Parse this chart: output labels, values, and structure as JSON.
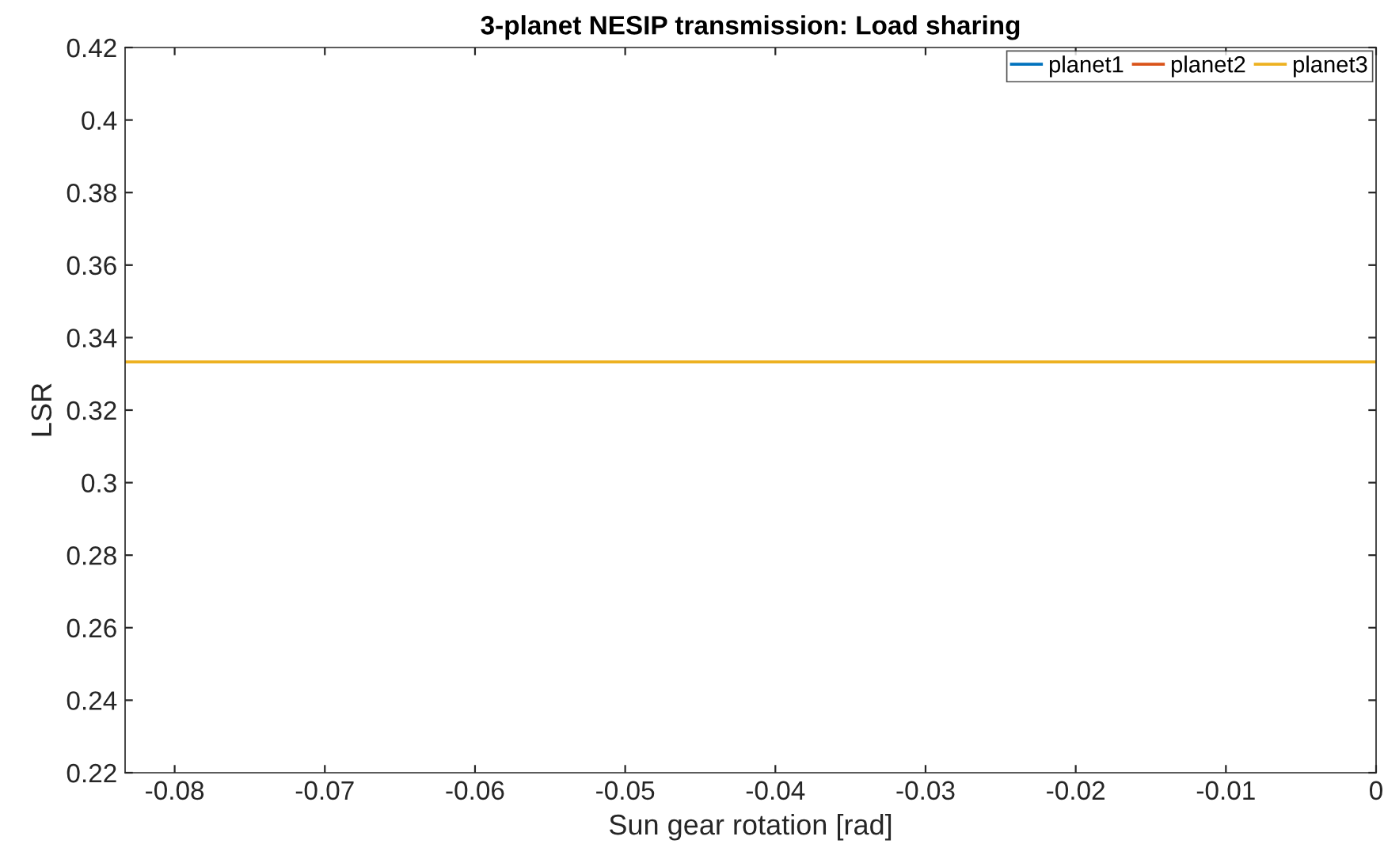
{
  "chart_data": {
    "type": "line",
    "title": "3-planet NESIP transmission: Load sharing",
    "xlabel": "Sun gear rotation [rad]",
    "ylabel": "LSR",
    "x": [
      -0.0833,
      0
    ],
    "series": [
      {
        "name": "planet1",
        "color": "#0072bd",
        "values": [
          null,
          null
        ]
      },
      {
        "name": "planet2",
        "color": "#d95319",
        "values": [
          null,
          null
        ]
      },
      {
        "name": "planet3",
        "color": "#edb120",
        "values": [
          0.3333,
          0.3333
        ]
      }
    ],
    "xlim": [
      -0.0833,
      0
    ],
    "xticks": [
      -0.08,
      -0.07,
      -0.06,
      -0.05,
      -0.04,
      -0.03,
      -0.02,
      -0.01,
      0
    ],
    "ylim": [
      0.22,
      0.42
    ],
    "yticks": [
      0.22,
      0.24,
      0.26,
      0.28,
      0.3,
      0.32,
      0.34,
      0.36,
      0.38,
      0.4,
      0.42
    ],
    "legend": "top right",
    "grid": false,
    "line_style": "solid",
    "marker": "none"
  }
}
